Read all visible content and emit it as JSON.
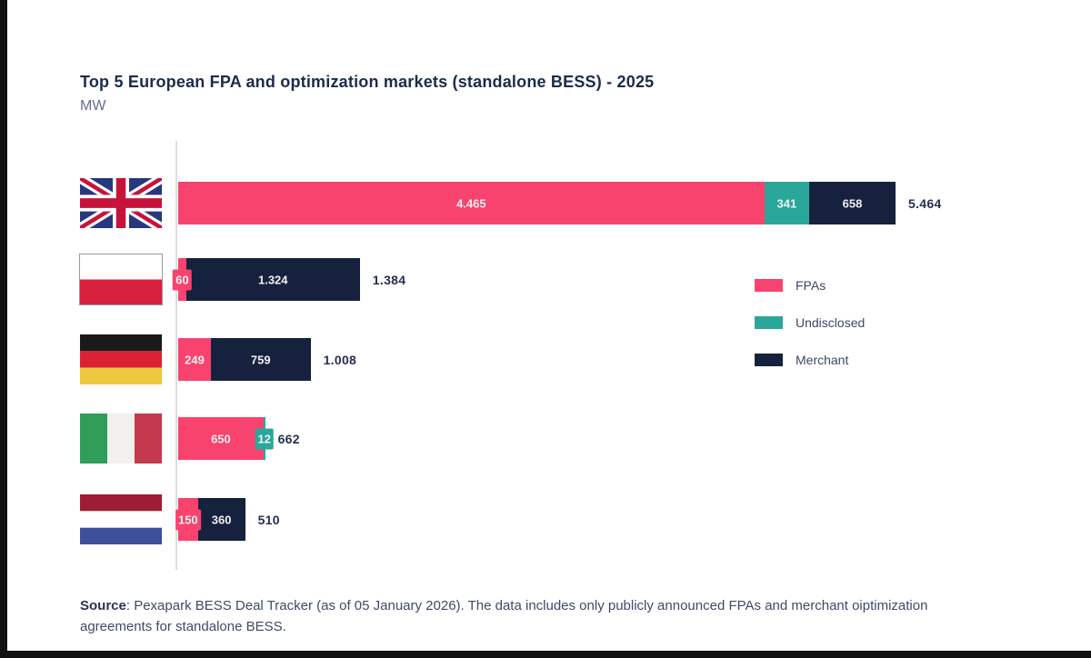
{
  "page": {
    "title": "Top 5 European FPA and optimization markets (standalone BESS) - 2025",
    "subtitle": "MW"
  },
  "colors": {
    "fpas_pink": "#f8436e",
    "undisclosed_teal": "#2aa79b",
    "merchant_navy": "#16213d",
    "title_navy": "#1b2b4b",
    "axis_gray": "#dedede"
  },
  "chart_data": {
    "type": "bar",
    "orientation": "horizontal",
    "title": "Top 5 European FPA and optimization markets (standalone BESS) - 2025",
    "unit": "MW",
    "xlim": [
      0,
      5464
    ],
    "grid": false,
    "legend_position": "right",
    "categories": [
      "United Kingdom",
      "Poland",
      "Germany",
      "Italy",
      "Netherlands"
    ],
    "series": [
      {
        "name": "FPAs",
        "color": "#f8436e",
        "values": [
          4465,
          60,
          249,
          650,
          150
        ]
      },
      {
        "name": "Undisclosed",
        "color": "#2aa79b",
        "values": [
          341,
          0,
          0,
          12,
          0
        ]
      },
      {
        "name": "Merchant",
        "color": "#16213d",
        "values": [
          658,
          1324,
          759,
          0,
          360
        ]
      }
    ],
    "rows": [
      {
        "country": "United Kingdom",
        "flag": "gb",
        "segments": [
          {
            "series": "FPAs",
            "value": 4465,
            "label": "4.465"
          },
          {
            "series": "Undisclosed",
            "value": 341,
            "label": "341"
          },
          {
            "series": "Merchant",
            "value": 658,
            "label": "658"
          }
        ],
        "total": 5464,
        "total_label": "5.464"
      },
      {
        "country": "Poland",
        "flag": "pl",
        "segments": [
          {
            "series": "FPAs",
            "value": 60,
            "label": "60"
          },
          {
            "series": "Merchant",
            "value": 1324,
            "label": "1.324"
          }
        ],
        "total": 1384,
        "total_label": "1.384"
      },
      {
        "country": "Germany",
        "flag": "de",
        "segments": [
          {
            "series": "FPAs",
            "value": 249,
            "label": "249"
          },
          {
            "series": "Merchant",
            "value": 759,
            "label": "759"
          }
        ],
        "total": 1008,
        "total_label": "1.008"
      },
      {
        "country": "Italy",
        "flag": "it",
        "segments": [
          {
            "series": "FPAs",
            "value": 650,
            "label": "650"
          },
          {
            "series": "Undisclosed",
            "value": 12,
            "label": "12"
          }
        ],
        "total": 662,
        "total_label": "662"
      },
      {
        "country": "Netherlands",
        "flag": "nl",
        "segments": [
          {
            "series": "FPAs",
            "value": 150,
            "label": "150"
          },
          {
            "series": "Merchant",
            "value": 360,
            "label": "360"
          }
        ],
        "total": 510,
        "total_label": "510"
      }
    ]
  },
  "legend": {
    "items": [
      {
        "label": "FPAs",
        "color": "#f8436e"
      },
      {
        "label": "Undisclosed",
        "color": "#2aa79b"
      },
      {
        "label": "Merchant",
        "color": "#16213d"
      }
    ]
  },
  "source": {
    "prefix": "Source",
    "text": ": Pexapark BESS Deal Tracker (as of 05 January 2026). The data includes only publicly announced FPAs and merchant oiptimization agreements for standalone BESS."
  }
}
